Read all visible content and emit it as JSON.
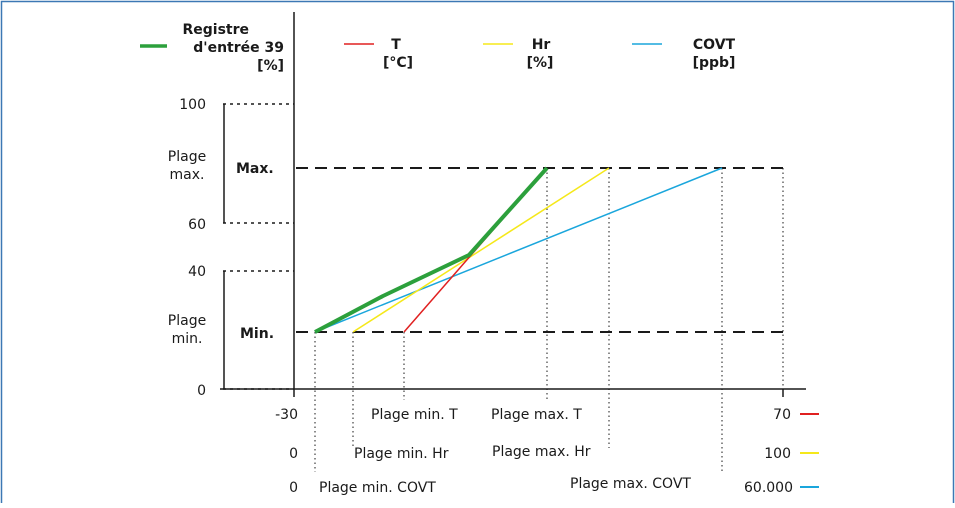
{
  "legend": {
    "green": {
      "line1": "Registre",
      "line2": "d'entrée 39",
      "line3": "[%]",
      "color": "#2ca03c"
    },
    "t": {
      "line1": "T",
      "line2": "[°C]",
      "color": "#e02020"
    },
    "hr": {
      "line1": "Hr",
      "line2": "[%]",
      "color": "#f5e81a"
    },
    "covt": {
      "line1": "COVT",
      "line2": "[ppb]",
      "color": "#1aa6dc"
    }
  },
  "y_axis": {
    "tick_100": "100",
    "tick_60": "60",
    "tick_40": "40",
    "tick_0": "0",
    "range_max_line1": "Plage",
    "range_max_line2": "max.",
    "range_min_line1": "Plage",
    "range_min_line2": "min.",
    "max_label": "Max.",
    "min_label": "Min."
  },
  "x_axis": {
    "row1": {
      "start": "-30",
      "min_label": "Plage min. T",
      "max_label": "Plage max. T",
      "end": "70"
    },
    "row2": {
      "start": "0",
      "min_label": "Plage min. Hr",
      "max_label": "Plage max. Hr",
      "end": "100"
    },
    "row3": {
      "start": "0",
      "min_label": "Plage min. COVT",
      "max_label": "Plage max. COVT",
      "end": "60.000"
    }
  },
  "frame_color": "#3c78b4"
}
